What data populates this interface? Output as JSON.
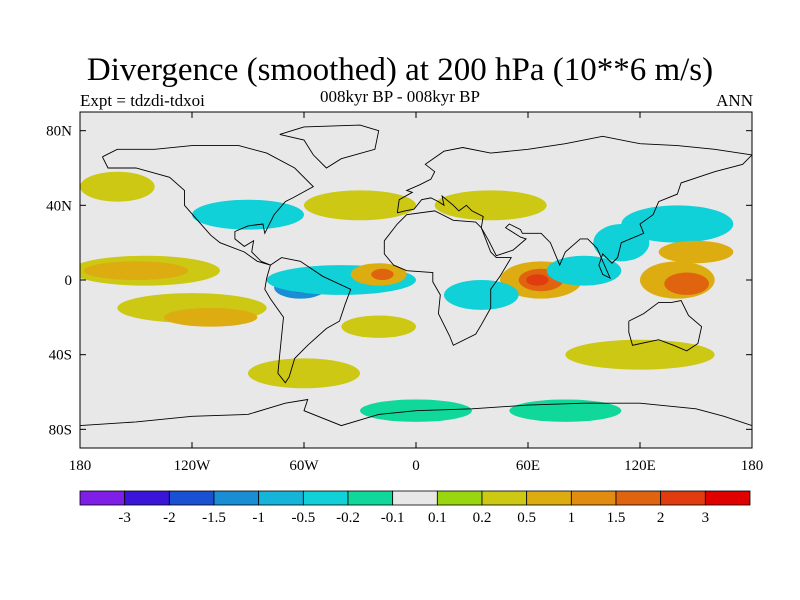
{
  "chart_data": {
    "type": "heatmap",
    "title": "Divergence (smoothed) at 200 hPa (10**6 m/s)",
    "left_string": "Expt = tdzdi-tdxoi",
    "center_string": "008kyr BP - 008kyr BP",
    "right_string": "ANN",
    "x_range": [
      -180,
      180
    ],
    "y_range": [
      -90,
      90
    ],
    "x_ticks": [
      {
        "value": -180,
        "label": "180"
      },
      {
        "value": -120,
        "label": "120W"
      },
      {
        "value": -60,
        "label": "60W"
      },
      {
        "value": 0,
        "label": "0"
      },
      {
        "value": 60,
        "label": "60E"
      },
      {
        "value": 120,
        "label": "120E"
      },
      {
        "value": 180,
        "label": "180"
      }
    ],
    "y_ticks": [
      {
        "value": 80,
        "label": "80N"
      },
      {
        "value": 40,
        "label": "40N"
      },
      {
        "value": 0,
        "label": "0"
      },
      {
        "value": -40,
        "label": "40S"
      },
      {
        "value": -80,
        "label": "80S"
      }
    ],
    "colorbar": {
      "levels": [
        "-3",
        "-2",
        "-1.5",
        "-1",
        "-0.5",
        "-0.2",
        "-0.1",
        "0.1",
        "0.2",
        "0.5",
        "1",
        "1.5",
        "2",
        "3"
      ],
      "colors": [
        "#7e1ee6",
        "#3a14d8",
        "#1a50d2",
        "#1a8ed4",
        "#16b4d8",
        "#10d0d8",
        "#10d89a",
        "#e8e8e8",
        "#9ad610",
        "#ccc814",
        "#dcac10",
        "#e08c10",
        "#e06410",
        "#e03c10",
        "#e00000"
      ]
    },
    "anomalies": [
      {
        "lon": -62,
        "lat": -4,
        "rx": 14,
        "ry": 6,
        "value": -1.2
      },
      {
        "lon": -60,
        "lat": -3,
        "rx": 9,
        "ry": 4,
        "value": -1.8
      },
      {
        "lon": -59,
        "lat": -3,
        "rx": 4,
        "ry": 2,
        "value": -3.5
      },
      {
        "lon": -40,
        "lat": 0,
        "rx": 40,
        "ry": 8,
        "value": -0.3
      },
      {
        "lon": -145,
        "lat": 5,
        "rx": 40,
        "ry": 8,
        "value": 0.3
      },
      {
        "lon": -150,
        "lat": 5,
        "rx": 28,
        "ry": 5,
        "value": 0.7
      },
      {
        "lon": -20,
        "lat": 3,
        "rx": 15,
        "ry": 6,
        "value": 0.8
      },
      {
        "lon": -18,
        "lat": 3,
        "rx": 6,
        "ry": 3,
        "value": 1.8
      },
      {
        "lon": 67,
        "lat": 0,
        "rx": 22,
        "ry": 10,
        "value": 0.7
      },
      {
        "lon": 67,
        "lat": 0,
        "rx": 12,
        "ry": 6,
        "value": 1.8
      },
      {
        "lon": 65,
        "lat": 0,
        "rx": 6,
        "ry": 3,
        "value": 2.5
      },
      {
        "lon": 140,
        "lat": 0,
        "rx": 20,
        "ry": 10,
        "value": 0.7
      },
      {
        "lon": 145,
        "lat": -2,
        "rx": 12,
        "ry": 6,
        "value": 1.6
      },
      {
        "lon": 35,
        "lat": -8,
        "rx": 20,
        "ry": 8,
        "value": -0.3
      },
      {
        "lon": 90,
        "lat": 5,
        "rx": 20,
        "ry": 8,
        "value": -0.3
      },
      {
        "lon": 110,
        "lat": 20,
        "rx": 15,
        "ry": 10,
        "value": -0.3
      },
      {
        "lon": -120,
        "lat": -15,
        "rx": 40,
        "ry": 8,
        "value": 0.3
      },
      {
        "lon": -110,
        "lat": -20,
        "rx": 25,
        "ry": 5,
        "value": 0.7
      },
      {
        "lon": -20,
        "lat": -25,
        "rx": 20,
        "ry": 6,
        "value": 0.3
      },
      {
        "lon": -90,
        "lat": 35,
        "rx": 30,
        "ry": 8,
        "value": -0.3
      },
      {
        "lon": -30,
        "lat": 40,
        "rx": 30,
        "ry": 8,
        "value": 0.3
      },
      {
        "lon": 40,
        "lat": 40,
        "rx": 30,
        "ry": 8,
        "value": 0.3
      },
      {
        "lon": 140,
        "lat": 30,
        "rx": 30,
        "ry": 10,
        "value": -0.3
      },
      {
        "lon": 150,
        "lat": 15,
        "rx": 20,
        "ry": 6,
        "value": 0.5
      },
      {
        "lon": -160,
        "lat": 50,
        "rx": 20,
        "ry": 8,
        "value": 0.2
      },
      {
        "lon": 120,
        "lat": -40,
        "rx": 40,
        "ry": 8,
        "value": 0.2
      },
      {
        "lon": -60,
        "lat": -50,
        "rx": 30,
        "ry": 8,
        "value": 0.2
      },
      {
        "lon": 0,
        "lat": -70,
        "rx": 30,
        "ry": 6,
        "value": -0.15
      },
      {
        "lon": 80,
        "lat": -70,
        "rx": 30,
        "ry": 6,
        "value": -0.15
      }
    ]
  }
}
